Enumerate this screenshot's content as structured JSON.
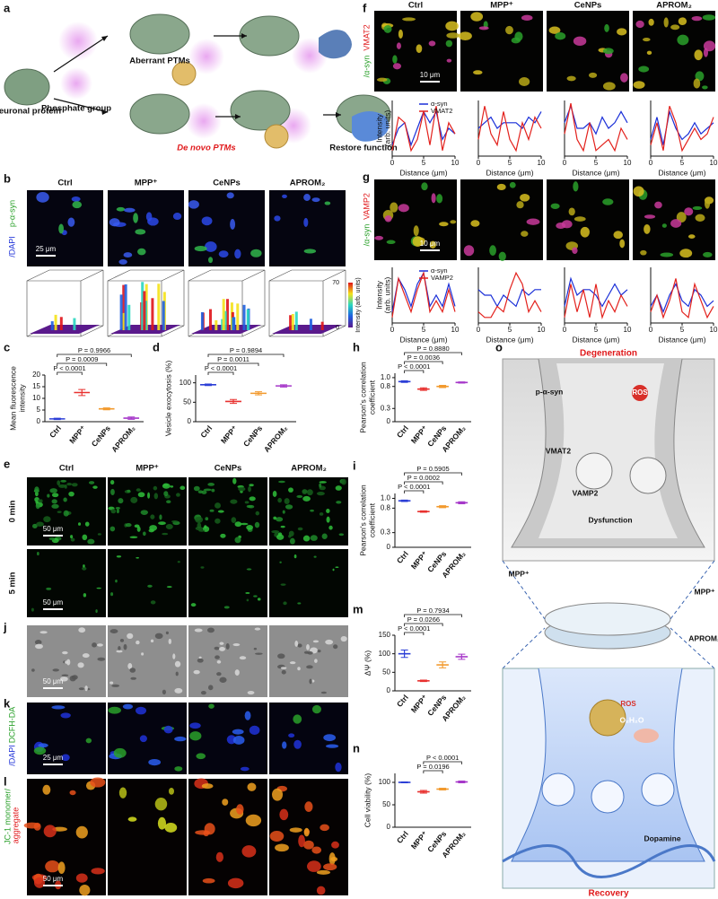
{
  "figure": {
    "panel_labels": [
      "a",
      "b",
      "c",
      "d",
      "e",
      "j",
      "k",
      "l",
      "f",
      "g",
      "h",
      "i",
      "m",
      "n",
      "o"
    ],
    "a": {
      "neuronal_protein": "Neuronal protein",
      "phosphate_group": "Phosphate group",
      "aberrant": "Aberrant PTMs",
      "de_novo": "De novo PTMs",
      "restore": "Restore function"
    },
    "groups": [
      "Ctrl",
      "MPP⁺",
      "CeNPs",
      "APROM₂"
    ],
    "b": {
      "stain_green": "p-α-syn",
      "stain_blue": "/DAPI",
      "scale": "25 μm",
      "colorbar_ticks": [
        70,
        0
      ],
      "colorbar_label": "Intensity (arb. units)"
    },
    "e": {
      "rows": [
        "0 min",
        "5 min"
      ],
      "scale": "50 μm"
    },
    "j": {
      "scale": "50 μm"
    },
    "k": {
      "stain_green": "DCFH-DA",
      "stain_blue": "/DAPI",
      "scale": "25 μm"
    },
    "l": {
      "stain_green": "JC-1 monomer/",
      "stain_red": "aggregate",
      "scale": "50 μm"
    },
    "f": {
      "stain_red": "VMAT2",
      "stain_green": "/α-syn",
      "scale": "10 μm"
    },
    "g": {
      "stain_red": "VAMP2",
      "stain_green": "/α-syn",
      "scale": "10 μm"
    },
    "o": {
      "degeneration": "Degeneration",
      "p_syn": "p-α-syn",
      "ros_top": "ROS",
      "vmat2": "VMAT2",
      "vamp2": "VAMP2",
      "dysfunction": "Dysfunction",
      "mpp_left": "MPP⁺",
      "mpp_right": "MPP⁺",
      "aprom": "APROM₂",
      "ros_bottom": "ROS",
      "o2h2o": "O₂H₂O",
      "dopamine": "Dopamine",
      "recovery": "Recovery"
    }
  },
  "chart_data": [
    {
      "type": "bar",
      "ylabel": [
        "Mean fluorescence",
        "intensity"
      ],
      "categories": [
        "Ctrl",
        "MPP⁺",
        "CeNPs",
        "APROM₂"
      ],
      "colors": [
        "#2c3fd6",
        "#e8312f",
        "#f29a2e",
        "#a638c9"
      ],
      "values": [
        1.2,
        12.5,
        5.5,
        1.5
      ],
      "errors": [
        0.3,
        1.3,
        0.4,
        0.5
      ],
      "ylim": [
        0,
        20
      ],
      "yticks": [
        0,
        5,
        10,
        15,
        20
      ],
      "comparisons": [
        {
          "label": "P < 0.0001",
          "pair": [
            0,
            1
          ]
        },
        {
          "label": "P = 0.0009",
          "pair": [
            0,
            2
          ]
        },
        {
          "label": "P = 0.9966",
          "pair": [
            0,
            3
          ]
        }
      ]
    },
    {
      "type": "bar",
      "ylabel": [
        "Vesicle exocytosis (%)"
      ],
      "categories": [
        "Ctrl",
        "MPP⁺",
        "CeNPs",
        "APROM₂"
      ],
      "colors": [
        "#2c3fd6",
        "#e8312f",
        "#f29a2e",
        "#a638c9"
      ],
      "values": [
        95,
        52,
        73,
        92
      ],
      "errors": [
        2,
        5,
        4,
        3
      ],
      "ylim": [
        0,
        120
      ],
      "yticks": [
        0,
        50,
        100
      ],
      "comparisons": [
        {
          "label": "P < 0.0001",
          "pair": [
            0,
            1
          ]
        },
        {
          "label": "P = 0.0011",
          "pair": [
            0,
            2
          ]
        },
        {
          "label": "P = 0.9894",
          "pair": [
            0,
            3
          ]
        }
      ]
    },
    {
      "type": "bar",
      "ylabel": [
        "Pearson's correlation",
        "coefficient"
      ],
      "categories": [
        "Ctrl",
        "MPP⁺",
        "CeNPs",
        "APROM₂"
      ],
      "colors": [
        "#2c3fd6",
        "#e8312f",
        "#f29a2e",
        "#a638c9"
      ],
      "values": [
        0.91,
        0.74,
        0.8,
        0.89
      ],
      "errors": [
        0.02,
        0.03,
        0.025,
        0.015
      ],
      "ylim": [
        0,
        1.1
      ],
      "yticks": [
        0,
        0.3,
        0.8,
        {
          "value": 1,
          "label": "1.0"
        }
      ],
      "comparisons": [
        {
          "label": "P < 0.0001",
          "pair": [
            0,
            1
          ]
        },
        {
          "label": "P = 0.0036",
          "pair": [
            0,
            2
          ]
        },
        {
          "label": "P = 0.8880",
          "pair": [
            0,
            3
          ]
        }
      ]
    },
    {
      "type": "bar",
      "ylabel": [
        "Pearson's correlation",
        "coefficient"
      ],
      "categories": [
        "Ctrl",
        "MPP⁺",
        "CeNPs",
        "APROM₂"
      ],
      "colors": [
        "#2c3fd6",
        "#e8312f",
        "#f29a2e",
        "#a638c9"
      ],
      "values": [
        0.95,
        0.73,
        0.83,
        0.91
      ],
      "errors": [
        0.015,
        0.015,
        0.02,
        0.02
      ],
      "ylim": [
        0,
        1.1
      ],
      "yticks": [
        0,
        0.3,
        0.8,
        {
          "value": 1,
          "label": "1.0"
        }
      ],
      "comparisons": [
        {
          "label": "P < 0.0001",
          "pair": [
            0,
            1
          ]
        },
        {
          "label": "P = 0.0002",
          "pair": [
            0,
            2
          ]
        },
        {
          "label": "P = 0.5905",
          "pair": [
            0,
            3
          ]
        }
      ]
    },
    {
      "type": "bar",
      "ylabel": [
        "ΔΨ (%)"
      ],
      "categories": [
        "Ctrl",
        "MPP⁺",
        "CeNPs",
        "APROM₂"
      ],
      "colors": [
        "#2c3fd6",
        "#e8312f",
        "#f29a2e",
        "#a638c9"
      ],
      "values": [
        100,
        27,
        70,
        92
      ],
      "errors": [
        10,
        2,
        8,
        7
      ],
      "ylim": [
        0,
        150
      ],
      "yticks": [
        0,
        50,
        100,
        150
      ],
      "comparisons": [
        {
          "label": "P < 0.0001",
          "pair": [
            0,
            1
          ]
        },
        {
          "label": "P = 0.0266",
          "pair": [
            0,
            2
          ]
        },
        {
          "label": "P = 0.7934",
          "pair": [
            0,
            3
          ]
        }
      ]
    },
    {
      "type": "bar",
      "ylabel": [
        "Cell viability (%)"
      ],
      "categories": [
        "Ctrl",
        "MPP⁺",
        "CeNPs",
        "APROM₂"
      ],
      "colors": [
        "#2c3fd6",
        "#e8312f",
        "#f29a2e",
        "#a638c9"
      ],
      "values": [
        100,
        79,
        85,
        101
      ],
      "errors": [
        1,
        3,
        2,
        2
      ],
      "ylim": [
        0,
        120
      ],
      "yticks": [
        0,
        50,
        100
      ],
      "comparisons": [
        {
          "label": "P = 0.0196",
          "pair": [
            1,
            2
          ]
        },
        {
          "label": "P < 0.0001",
          "pair": [
            1,
            3
          ]
        }
      ]
    },
    {
      "type": "line",
      "ylabel": [
        "Intensity",
        "(arb. units)"
      ],
      "xlabel": "Distance (μm)",
      "xlim": [
        0,
        10
      ],
      "xticks": [
        0,
        5,
        10
      ],
      "ylim": [
        0,
        1
      ],
      "x": [
        0,
        1,
        2,
        3,
        4,
        5,
        6,
        7,
        8,
        9,
        10
      ],
      "series": [
        {
          "name": "α-syn",
          "color": "#1a2fd8",
          "values": [
            [
              0.2,
              0.5,
              0.6,
              0.2,
              0.5,
              0.8,
              0.6,
              0.8,
              0.3,
              0.5,
              0.4
            ],
            [
              0.5,
              0.6,
              0.7,
              0.5,
              0.6,
              0.6,
              0.6,
              0.5,
              0.7,
              0.6,
              0.8
            ],
            [
              0.6,
              0.9,
              0.5,
              0.5,
              0.6,
              0.4,
              0.7,
              0.5,
              0.6,
              0.8,
              0.6
            ],
            [
              0.3,
              0.7,
              0.2,
              0.8,
              0.5,
              0.3,
              0.4,
              0.6,
              0.4,
              0.5,
              0.6
            ]
          ]
        },
        {
          "name": "VMAT2",
          "color": "#e3211c",
          "values": [
            [
              0.1,
              0.7,
              0.6,
              0.1,
              0.3,
              0.8,
              0.2,
              0.9,
              0.1,
              0.6,
              0.4
            ],
            [
              0.3,
              0.9,
              0.4,
              0.2,
              0.8,
              0.3,
              0.1,
              0.6,
              0.3,
              0.7,
              0.5
            ],
            [
              0.4,
              0.95,
              0.3,
              0.1,
              0.6,
              0.1,
              0.2,
              0.3,
              0.1,
              0.5,
              0.3
            ],
            [
              0.2,
              0.6,
              0.1,
              0.9,
              0.6,
              0.1,
              0.3,
              0.5,
              0.3,
              0.4,
              0.7
            ]
          ]
        }
      ]
    },
    {
      "type": "line",
      "ylabel": [
        "Intensity",
        "(arb. units)"
      ],
      "xlabel": "Distance (μm)",
      "xlim": [
        0,
        10
      ],
      "xticks": [
        0,
        5,
        10
      ],
      "ylim": [
        0,
        1
      ],
      "x": [
        0,
        1,
        2,
        3,
        4,
        5,
        6,
        7,
        8,
        9,
        10
      ],
      "series": [
        {
          "name": "α-syn",
          "color": "#1a2fd8",
          "values": [
            [
              0.2,
              0.8,
              0.6,
              0.3,
              0.7,
              0.9,
              0.3,
              0.5,
              0.3,
              0.7,
              0.3
            ],
            [
              0.6,
              0.5,
              0.5,
              0.3,
              0.5,
              0.4,
              0.3,
              0.6,
              0.5,
              0.6,
              0.6
            ],
            [
              0.3,
              0.8,
              0.5,
              0.6,
              0.6,
              0.5,
              0.3,
              0.5,
              0.7,
              0.5,
              0.6
            ],
            [
              0.3,
              0.5,
              0.2,
              0.5,
              0.7,
              0.4,
              0.3,
              0.6,
              0.5,
              0.3,
              0.4
            ]
          ]
        },
        {
          "name": "VAMP2",
          "color": "#e3211c",
          "values": [
            [
              0.1,
              0.8,
              0.5,
              0.2,
              0.6,
              0.9,
              0.2,
              0.4,
              0.2,
              0.6,
              0.2
            ],
            [
              0.2,
              0.1,
              0.1,
              0.3,
              0.2,
              0.6,
              0.9,
              0.7,
              0.2,
              0.4,
              0.2
            ],
            [
              0.1,
              0.7,
              0.2,
              0.6,
              0.1,
              0.7,
              0.1,
              0.4,
              0.2,
              0.5,
              0.3
            ],
            [
              0.2,
              0.5,
              0.1,
              0.4,
              0.8,
              0.2,
              0.1,
              0.7,
              0.4,
              0.1,
              0.3
            ]
          ]
        }
      ]
    }
  ]
}
